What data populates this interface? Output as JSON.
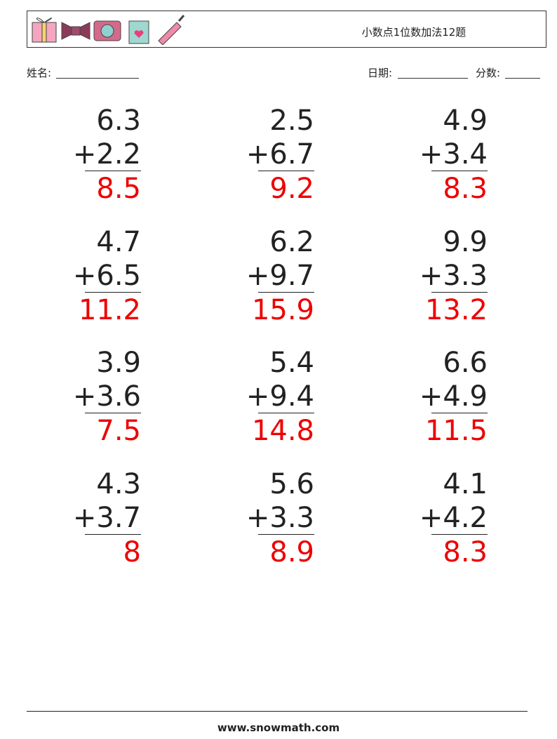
{
  "header": {
    "title": "小数点1位数加法12题"
  },
  "fields": {
    "name": "姓名:",
    "date": "日期:",
    "score": "分数:"
  },
  "problems": [
    {
      "a": "6.3",
      "b": "+2.2",
      "answer": "8.5"
    },
    {
      "a": "2.5",
      "b": "+6.7",
      "answer": "9.2"
    },
    {
      "a": "4.9",
      "b": "+3.4",
      "answer": "8.3"
    },
    {
      "a": "4.7",
      "b": "+6.5",
      "answer": "11.2"
    },
    {
      "a": "6.2",
      "b": "+9.7",
      "answer": "15.9"
    },
    {
      "a": "9.9",
      "b": "+3.3",
      "answer": "13.2"
    },
    {
      "a": "3.9",
      "b": "+3.6",
      "answer": "7.5"
    },
    {
      "a": "5.4",
      "b": "+9.4",
      "answer": "14.8"
    },
    {
      "a": "6.6",
      "b": "+4.9",
      "answer": "11.5"
    },
    {
      "a": "4.3",
      "b": "+3.7",
      "answer": "8"
    },
    {
      "a": "5.6",
      "b": "+3.3",
      "answer": "8.9"
    },
    {
      "a": "4.1",
      "b": "+4.2",
      "answer": "8.3"
    }
  ],
  "footer": {
    "website": "www.snowmath.com"
  }
}
